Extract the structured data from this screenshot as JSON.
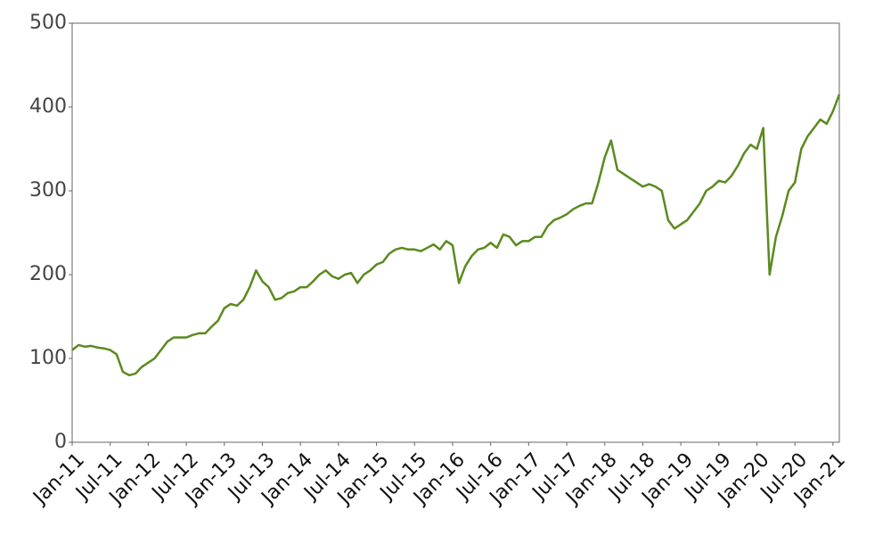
{
  "chart_data": {
    "type": "line",
    "x": [
      "2011-01",
      "2011-02",
      "2011-03",
      "2011-04",
      "2011-05",
      "2011-06",
      "2011-07",
      "2011-08",
      "2011-09",
      "2011-10",
      "2011-11",
      "2011-12",
      "2012-01",
      "2012-02",
      "2012-03",
      "2012-04",
      "2012-05",
      "2012-06",
      "2012-07",
      "2012-08",
      "2012-09",
      "2012-10",
      "2012-11",
      "2012-12",
      "2013-01",
      "2013-02",
      "2013-03",
      "2013-04",
      "2013-05",
      "2013-06",
      "2013-07",
      "2013-08",
      "2013-09",
      "2013-10",
      "2013-11",
      "2013-12",
      "2014-01",
      "2014-02",
      "2014-03",
      "2014-04",
      "2014-05",
      "2014-06",
      "2014-07",
      "2014-08",
      "2014-09",
      "2014-10",
      "2014-11",
      "2014-12",
      "2015-01",
      "2015-02",
      "2015-03",
      "2015-04",
      "2015-05",
      "2015-06",
      "2015-07",
      "2015-08",
      "2015-09",
      "2015-10",
      "2015-11",
      "2015-12",
      "2016-01",
      "2016-02",
      "2016-03",
      "2016-04",
      "2016-05",
      "2016-06",
      "2016-07",
      "2016-08",
      "2016-09",
      "2016-10",
      "2016-11",
      "2016-12",
      "2017-01",
      "2017-02",
      "2017-03",
      "2017-04",
      "2017-05",
      "2017-06",
      "2017-07",
      "2017-08",
      "2017-09",
      "2017-10",
      "2017-11",
      "2017-12",
      "2018-01",
      "2018-02",
      "2018-03",
      "2018-04",
      "2018-05",
      "2018-06",
      "2018-07",
      "2018-08",
      "2018-09",
      "2018-10",
      "2018-11",
      "2018-12",
      "2019-01",
      "2019-02",
      "2019-03",
      "2019-04",
      "2019-05",
      "2019-06",
      "2019-07",
      "2019-08",
      "2019-09",
      "2019-10",
      "2019-11",
      "2019-12",
      "2020-01",
      "2020-02",
      "2020-03",
      "2020-04",
      "2020-05",
      "2020-06",
      "2020-07",
      "2020-08",
      "2020-09",
      "2020-10",
      "2020-11",
      "2020-12",
      "2021-01",
      "2021-02"
    ],
    "values": [
      110,
      116,
      114,
      115,
      113,
      112,
      110,
      105,
      84,
      80,
      82,
      90,
      95,
      100,
      110,
      120,
      125,
      125,
      125,
      128,
      130,
      130,
      138,
      145,
      160,
      165,
      163,
      170,
      185,
      205,
      192,
      185,
      170,
      172,
      178,
      180,
      185,
      185,
      192,
      200,
      205,
      198,
      195,
      200,
      202,
      190,
      200,
      205,
      212,
      215,
      225,
      230,
      232,
      230,
      230,
      228,
      232,
      236,
      230,
      240,
      235,
      190,
      210,
      222,
      230,
      232,
      238,
      232,
      248,
      245,
      235,
      240,
      240,
      245,
      245,
      258,
      265,
      268,
      272,
      278,
      282,
      285,
      285,
      310,
      340,
      360,
      325,
      320,
      315,
      310,
      305,
      308,
      305,
      300,
      265,
      255,
      260,
      265,
      275,
      285,
      300,
      305,
      312,
      310,
      318,
      330,
      345,
      355,
      350,
      375,
      200,
      245,
      270,
      300,
      310,
      350,
      365,
      375,
      385,
      380,
      395,
      415
    ],
    "color": "#5a8a1e",
    "xlim": [
      "2011-01",
      "2021-02"
    ],
    "xticks": [
      {
        "value": "2011-01",
        "label": "Jan-11"
      },
      {
        "value": "2011-07",
        "label": "Jul-11"
      },
      {
        "value": "2012-01",
        "label": "Jan-12"
      },
      {
        "value": "2012-07",
        "label": "Jul-12"
      },
      {
        "value": "2013-01",
        "label": "Jan-13"
      },
      {
        "value": "2013-07",
        "label": "Jul-13"
      },
      {
        "value": "2014-01",
        "label": "Jan-14"
      },
      {
        "value": "2014-07",
        "label": "Jul-14"
      },
      {
        "value": "2015-01",
        "label": "Jan-15"
      },
      {
        "value": "2015-07",
        "label": "Jul-15"
      },
      {
        "value": "2016-01",
        "label": "Jan-16"
      },
      {
        "value": "2016-07",
        "label": "Jul-16"
      },
      {
        "value": "2017-01",
        "label": "Jan-17"
      },
      {
        "value": "2017-07",
        "label": "Jul-17"
      },
      {
        "value": "2018-01",
        "label": "Jan-18"
      },
      {
        "value": "2018-07",
        "label": "Jul-18"
      },
      {
        "value": "2019-01",
        "label": "Jan-19"
      },
      {
        "value": "2019-07",
        "label": "Jul-19"
      },
      {
        "value": "2020-01",
        "label": "Jan-20"
      },
      {
        "value": "2020-07",
        "label": "Jul-20"
      },
      {
        "value": "2021-01",
        "label": "Jan-21"
      }
    ],
    "ylim": [
      0,
      500
    ],
    "yticks": [
      0,
      100,
      200,
      300,
      400,
      500
    ],
    "grid": false
  }
}
